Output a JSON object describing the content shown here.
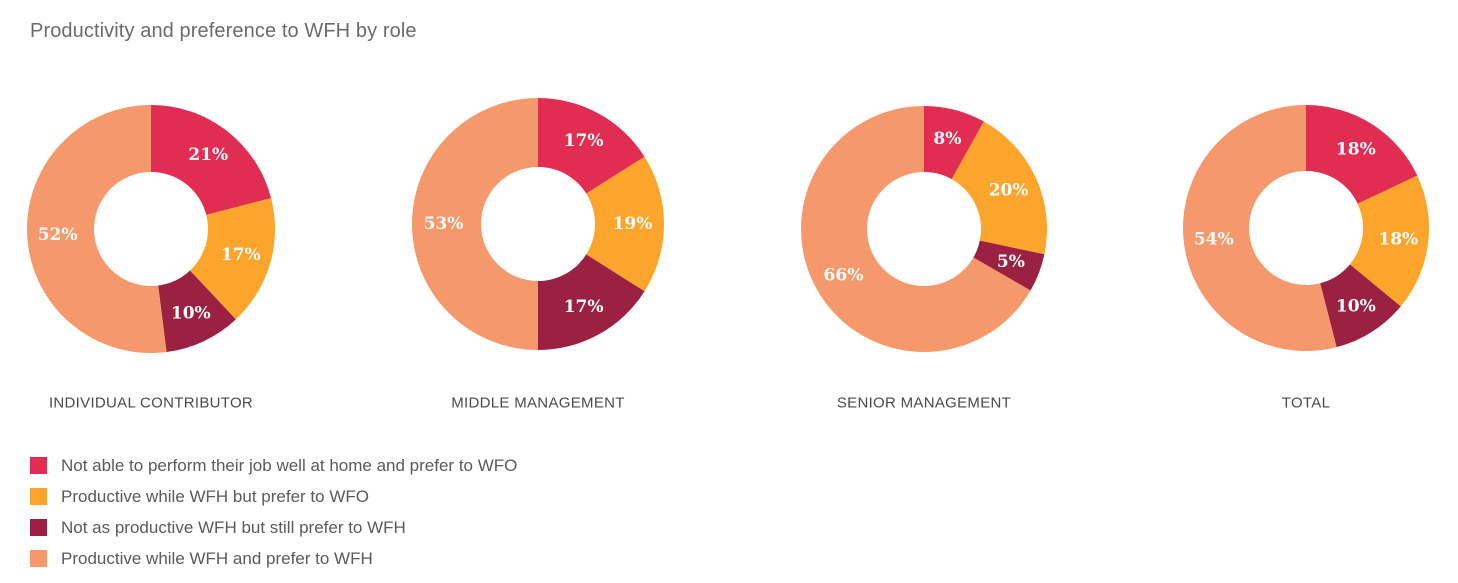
{
  "title": "Productivity and preference to WFH by role",
  "colors": {
    "not_able_prefer_wfo": "#e22d52",
    "productive_prefer_wfo": "#fca52c",
    "not_as_productive_prefer_wfh": "#9b2143",
    "productive_prefer_wfh": "#f5986b"
  },
  "legend": [
    {
      "label": "Not able to perform their job well at home and prefer to WFO",
      "color": "#e22d52"
    },
    {
      "label": "Productive while WFH but prefer to WFO",
      "color": "#fca52c"
    },
    {
      "label": "Not as productive WFH but still prefer to WFH",
      "color": "#9b2143"
    },
    {
      "label": "Productive while WFH and prefer to WFH",
      "color": "#f5986b"
    }
  ],
  "chart_data": [
    {
      "type": "pie",
      "name": "INDIVIDUAL CONTRIBUTOR",
      "categories": [
        "Not able to perform their job well at home and prefer to WFO",
        "Productive while WFH but prefer to WFO",
        "Not as productive WFH but still prefer to WFH",
        "Productive while WFH and prefer to WFH"
      ],
      "values": [
        21,
        17,
        10,
        52
      ],
      "labels": [
        "21%",
        "17%",
        "10%",
        "52%"
      ]
    },
    {
      "type": "pie",
      "name": "MIDDLE MANAGEMENT",
      "categories": [
        "Not able to perform their job well at home and prefer to WFO",
        "Productive while WFH but prefer to WFO",
        "Not as productive WFH but still prefer to WFH",
        "Productive while WFH and prefer to WFH"
      ],
      "values": [
        17,
        19,
        17,
        53
      ],
      "labels": [
        "17%",
        "19%",
        "17%",
        "53%"
      ]
    },
    {
      "type": "pie",
      "name": "SENIOR MANAGEMENT",
      "categories": [
        "Not able to perform their job well at home and prefer to WFO",
        "Productive while WFH but prefer to WFO",
        "Not as productive WFH but still prefer to WFH",
        "Productive while WFH and prefer to WFH"
      ],
      "values": [
        8,
        20,
        5,
        66
      ],
      "labels": [
        "8%",
        "20%",
        "5%",
        "66%"
      ]
    },
    {
      "type": "pie",
      "name": "TOTAL",
      "categories": [
        "Not able to perform their job well at home and prefer to WFO",
        "Productive while WFH but prefer to WFO",
        "Not as productive WFH but still prefer to WFH",
        "Productive while WFH and prefer to WFH"
      ],
      "values": [
        18,
        18,
        10,
        54
      ],
      "labels": [
        "18%",
        "18%",
        "10%",
        "54%"
      ]
    }
  ]
}
